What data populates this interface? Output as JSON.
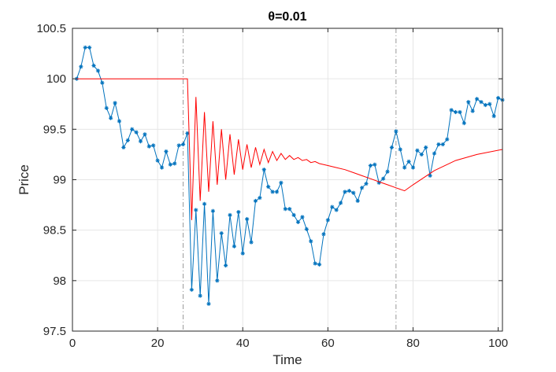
{
  "chart_data": {
    "type": "line",
    "title": "θ=0.01",
    "xlabel": "Time",
    "ylabel": "Price",
    "xlim": [
      0,
      101
    ],
    "ylim": [
      97.5,
      100.5
    ],
    "xticks": [
      0,
      20,
      40,
      60,
      80,
      100
    ],
    "xtick_labels": [
      "0",
      "20",
      "40",
      "60",
      "80",
      "100"
    ],
    "yticks": [
      97.5,
      98,
      98.5,
      99,
      99.5,
      100,
      100.5
    ],
    "ytick_labels": [
      "97.5",
      "98",
      "98.5",
      "99",
      "99.5",
      "100",
      "100.5"
    ],
    "grid": true,
    "legend": "none",
    "vlines": [
      26,
      76
    ],
    "series": [
      {
        "color": "#0072BD",
        "marker": "asterisk",
        "x": [
          1,
          2,
          3,
          4,
          5,
          6,
          7,
          8,
          9,
          10,
          11,
          12,
          13,
          14,
          15,
          16,
          17,
          18,
          19,
          20,
          21,
          22,
          23,
          24,
          25,
          26,
          27,
          28,
          29,
          30,
          31,
          32,
          33,
          34,
          35,
          36,
          37,
          38,
          39,
          40,
          41,
          42,
          43,
          44,
          45,
          46,
          47,
          48,
          49,
          50,
          51,
          52,
          53,
          54,
          55,
          56,
          57,
          58,
          59,
          60,
          61,
          62,
          63,
          64,
          65,
          66,
          67,
          68,
          69,
          70,
          71,
          72,
          73,
          74,
          75,
          76,
          77,
          78,
          79,
          80,
          81,
          82,
          83,
          84,
          85,
          86,
          87,
          88,
          89,
          90,
          91,
          92,
          93,
          94,
          95,
          96,
          97,
          98,
          99,
          100,
          101
        ],
        "y": [
          100.0,
          100.12,
          100.31,
          100.31,
          100.13,
          100.08,
          99.96,
          99.71,
          99.61,
          99.76,
          99.58,
          99.32,
          99.39,
          99.5,
          99.47,
          99.38,
          99.45,
          99.33,
          99.34,
          99.19,
          99.12,
          99.28,
          99.15,
          99.16,
          99.34,
          99.35,
          99.46,
          97.91,
          98.7,
          97.85,
          98.76,
          97.77,
          98.69,
          98.0,
          98.47,
          98.15,
          98.65,
          98.34,
          98.68,
          98.27,
          98.61,
          98.38,
          98.79,
          98.82,
          99.1,
          98.93,
          98.88,
          98.88,
          98.97,
          98.71,
          98.71,
          98.65,
          98.58,
          98.63,
          98.51,
          98.39,
          98.17,
          98.16,
          98.46,
          98.6,
          98.73,
          98.7,
          98.77,
          98.88,
          98.89,
          98.87,
          98.79,
          98.92,
          98.96,
          99.14,
          99.15,
          98.97,
          99.01,
          99.08,
          99.32,
          99.48,
          99.3,
          99.12,
          99.18,
          99.12,
          99.29,
          99.25,
          99.32,
          99.04,
          99.26,
          99.35,
          99.35,
          99.4,
          99.69,
          99.67,
          99.67,
          99.56,
          99.77,
          99.68,
          99.8,
          99.77,
          99.74,
          99.75,
          99.63,
          99.81,
          99.79
        ]
      },
      {
        "color": "#FF0000",
        "marker": "none",
        "x": [
          1,
          27,
          28,
          29,
          30,
          31,
          32,
          33,
          34,
          35,
          36,
          37,
          38,
          39,
          40,
          41,
          42,
          43,
          44,
          45,
          46,
          47,
          48,
          49,
          50,
          51,
          52,
          53,
          54,
          55,
          56,
          57,
          58,
          59,
          60,
          62,
          64,
          66,
          68,
          70,
          72,
          74,
          76,
          78,
          80,
          85,
          90,
          95,
          101
        ],
        "y": [
          100.0,
          100.0,
          98.6,
          99.82,
          98.79,
          99.67,
          98.88,
          99.58,
          98.95,
          99.5,
          99.0,
          99.45,
          99.05,
          99.4,
          99.1,
          99.35,
          99.12,
          99.32,
          99.15,
          99.3,
          99.17,
          99.28,
          99.19,
          99.26,
          99.2,
          99.24,
          99.2,
          99.22,
          99.19,
          99.2,
          99.17,
          99.18,
          99.16,
          99.15,
          99.14,
          99.12,
          99.1,
          99.07,
          99.04,
          99.01,
          98.98,
          98.95,
          98.92,
          98.89,
          98.95,
          99.09,
          99.19,
          99.25,
          99.3
        ]
      }
    ]
  }
}
